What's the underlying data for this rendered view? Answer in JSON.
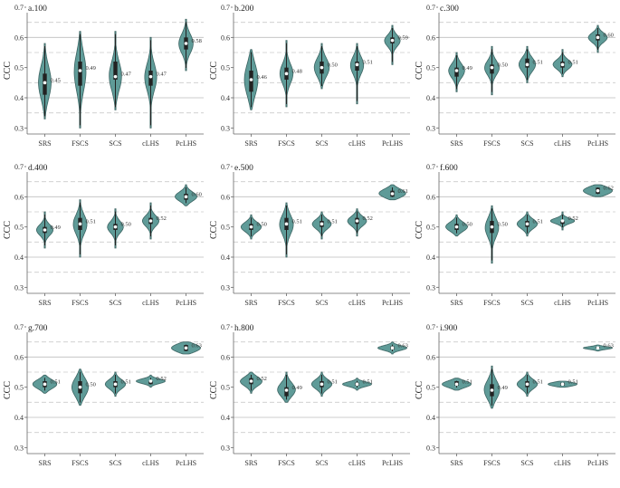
{
  "colors": {
    "violin": "#5f9b98",
    "violin_stroke": "#3c6462",
    "box": "#222222",
    "median": "#ffffff",
    "grid_solid": "#bdbdbd",
    "grid_dashed": "#cccccc"
  },
  "chart_data": [
    {
      "type": "violin",
      "panel_label": "a.100",
      "ylabel": "CCC",
      "ylim": [
        0.28,
        0.7
      ],
      "yticks": [
        0.3,
        0.4,
        0.5,
        0.6,
        0.7
      ],
      "grid": "solid at 0.4 and 0.6; dashed at 0.35, 0.45, 0.55, 0.65",
      "categories": [
        "SRS",
        "FSCS",
        "SCS",
        "cLHS",
        "PcLHS"
      ],
      "series": [
        {
          "median": 0.45,
          "q1": 0.41,
          "q3": 0.48,
          "min": 0.33,
          "max": 0.58,
          "label": "0.45"
        },
        {
          "median": 0.49,
          "q1": 0.44,
          "q3": 0.52,
          "min": 0.3,
          "max": 0.62,
          "label": "0.49"
        },
        {
          "median": 0.47,
          "q1": 0.46,
          "q3": 0.52,
          "min": 0.36,
          "max": 0.62,
          "label": "0.47"
        },
        {
          "median": 0.47,
          "q1": 0.44,
          "q3": 0.49,
          "min": 0.3,
          "max": 0.6,
          "label": "0.47"
        },
        {
          "median": 0.58,
          "q1": 0.56,
          "q3": 0.6,
          "min": 0.49,
          "max": 0.66,
          "label": "0.58"
        }
      ]
    },
    {
      "type": "violin",
      "panel_label": "b.200",
      "ylabel": "CCC",
      "ylim": [
        0.28,
        0.7
      ],
      "yticks": [
        0.3,
        0.4,
        0.5,
        0.6,
        0.7
      ],
      "categories": [
        "SRS",
        "FSCS",
        "SCS",
        "cLHS",
        "PcLHS"
      ],
      "series": [
        {
          "median": 0.46,
          "q1": 0.42,
          "q3": 0.49,
          "min": 0.36,
          "max": 0.56,
          "label": "0.46"
        },
        {
          "median": 0.48,
          "q1": 0.46,
          "q3": 0.5,
          "min": 0.37,
          "max": 0.59,
          "label": "0.48"
        },
        {
          "median": 0.5,
          "q1": 0.48,
          "q3": 0.52,
          "min": 0.43,
          "max": 0.58,
          "label": "0.50"
        },
        {
          "median": 0.51,
          "q1": 0.49,
          "q3": 0.52,
          "min": 0.38,
          "max": 0.58,
          "label": "0.51"
        },
        {
          "median": 0.59,
          "q1": 0.58,
          "q3": 0.6,
          "min": 0.51,
          "max": 0.64,
          "label": "0.59"
        }
      ]
    },
    {
      "type": "violin",
      "panel_label": "c.300",
      "ylabel": "CCC",
      "ylim": [
        0.28,
        0.7
      ],
      "yticks": [
        0.3,
        0.4,
        0.5,
        0.6,
        0.7
      ],
      "categories": [
        "SRS",
        "FSCS",
        "SCS",
        "cLHS",
        "PcLHS"
      ],
      "series": [
        {
          "median": 0.49,
          "q1": 0.47,
          "q3": 0.5,
          "min": 0.42,
          "max": 0.55,
          "label": "0.49"
        },
        {
          "median": 0.5,
          "q1": 0.48,
          "q3": 0.51,
          "min": 0.41,
          "max": 0.57,
          "label": "0.50"
        },
        {
          "median": 0.51,
          "q1": 0.5,
          "q3": 0.53,
          "min": 0.45,
          "max": 0.57,
          "label": "0.51"
        },
        {
          "median": 0.51,
          "q1": 0.5,
          "q3": 0.52,
          "min": 0.47,
          "max": 0.56,
          "label": "0.51"
        },
        {
          "median": 0.6,
          "q1": 0.59,
          "q3": 0.61,
          "min": 0.55,
          "max": 0.64,
          "label": "0.60"
        }
      ]
    },
    {
      "type": "violin",
      "panel_label": "d.400",
      "ylabel": "CCC",
      "ylim": [
        0.28,
        0.7
      ],
      "yticks": [
        0.3,
        0.4,
        0.5,
        0.6,
        0.7
      ],
      "categories": [
        "SRS",
        "FSCS",
        "SCS",
        "cLHS",
        "PcLHS"
      ],
      "series": [
        {
          "median": 0.49,
          "q1": 0.48,
          "q3": 0.5,
          "min": 0.43,
          "max": 0.55,
          "label": "0.49"
        },
        {
          "median": 0.51,
          "q1": 0.49,
          "q3": 0.53,
          "min": 0.4,
          "max": 0.59,
          "label": "0.51"
        },
        {
          "median": 0.5,
          "q1": 0.49,
          "q3": 0.51,
          "min": 0.43,
          "max": 0.56,
          "label": "0.50"
        },
        {
          "median": 0.52,
          "q1": 0.51,
          "q3": 0.53,
          "min": 0.46,
          "max": 0.58,
          "label": "0.52"
        },
        {
          "median": 0.6,
          "q1": 0.59,
          "q3": 0.61,
          "min": 0.57,
          "max": 0.64,
          "label": "0.60"
        }
      ]
    },
    {
      "type": "violin",
      "panel_label": "e.500",
      "ylabel": "CCC",
      "ylim": [
        0.28,
        0.7
      ],
      "yticks": [
        0.3,
        0.4,
        0.5,
        0.6,
        0.7
      ],
      "categories": [
        "SRS",
        "FSCS",
        "SCS",
        "cLHS",
        "PcLHS"
      ],
      "series": [
        {
          "median": 0.5,
          "q1": 0.49,
          "q3": 0.51,
          "min": 0.46,
          "max": 0.54,
          "label": "0.50"
        },
        {
          "median": 0.51,
          "q1": 0.49,
          "q3": 0.53,
          "min": 0.4,
          "max": 0.58,
          "label": "0.51"
        },
        {
          "median": 0.51,
          "q1": 0.5,
          "q3": 0.52,
          "min": 0.46,
          "max": 0.55,
          "label": "0.51"
        },
        {
          "median": 0.52,
          "q1": 0.51,
          "q3": 0.53,
          "min": 0.47,
          "max": 0.56,
          "label": "0.52"
        },
        {
          "median": 0.61,
          "q1": 0.6,
          "q3": 0.62,
          "min": 0.59,
          "max": 0.64,
          "label": "0.61"
        }
      ]
    },
    {
      "type": "violin",
      "panel_label": "f.600",
      "ylabel": "CCC",
      "ylim": [
        0.28,
        0.7
      ],
      "yticks": [
        0.3,
        0.4,
        0.5,
        0.6,
        0.7
      ],
      "categories": [
        "SRS",
        "FSCS",
        "SCS",
        "cLHS",
        "PcLHS"
      ],
      "series": [
        {
          "median": 0.5,
          "q1": 0.49,
          "q3": 0.51,
          "min": 0.47,
          "max": 0.54,
          "label": "0.50"
        },
        {
          "median": 0.5,
          "q1": 0.48,
          "q3": 0.52,
          "min": 0.38,
          "max": 0.57,
          "label": "0.50"
        },
        {
          "median": 0.51,
          "q1": 0.5,
          "q3": 0.52,
          "min": 0.47,
          "max": 0.55,
          "label": "0.51"
        },
        {
          "median": 0.52,
          "q1": 0.51,
          "q3": 0.52,
          "min": 0.49,
          "max": 0.55,
          "label": "0.52"
        },
        {
          "median": 0.62,
          "q1": 0.61,
          "q3": 0.63,
          "min": 0.6,
          "max": 0.64,
          "label": "0.62"
        }
      ]
    },
    {
      "type": "violin",
      "panel_label": "g.700",
      "ylabel": "CCC",
      "ylim": [
        0.28,
        0.7
      ],
      "yticks": [
        0.3,
        0.4,
        0.5,
        0.6,
        0.7
      ],
      "categories": [
        "SRS",
        "FSCS",
        "SCS",
        "cLHS",
        "PcLHS"
      ],
      "series": [
        {
          "median": 0.51,
          "q1": 0.5,
          "q3": 0.52,
          "min": 0.48,
          "max": 0.54,
          "label": "0.51"
        },
        {
          "median": 0.5,
          "q1": 0.48,
          "q3": 0.52,
          "min": 0.44,
          "max": 0.56,
          "label": "0.50"
        },
        {
          "median": 0.51,
          "q1": 0.5,
          "q3": 0.52,
          "min": 0.47,
          "max": 0.55,
          "label": "0.51"
        },
        {
          "median": 0.52,
          "q1": 0.51,
          "q3": 0.52,
          "min": 0.5,
          "max": 0.54,
          "label": "0.52"
        },
        {
          "median": 0.63,
          "q1": 0.62,
          "q3": 0.64,
          "min": 0.61,
          "max": 0.65,
          "label": "0.63"
        }
      ]
    },
    {
      "type": "violin",
      "panel_label": "h.800",
      "ylabel": "CCC",
      "ylim": [
        0.28,
        0.7
      ],
      "yticks": [
        0.3,
        0.4,
        0.5,
        0.6,
        0.7
      ],
      "categories": [
        "SRS",
        "FSCS",
        "SCS",
        "cLHS",
        "PcLHS"
      ],
      "series": [
        {
          "median": 0.52,
          "q1": 0.51,
          "q3": 0.53,
          "min": 0.48,
          "max": 0.55,
          "label": "0.52"
        },
        {
          "median": 0.49,
          "q1": 0.47,
          "q3": 0.5,
          "min": 0.45,
          "max": 0.55,
          "label": "0.49"
        },
        {
          "median": 0.51,
          "q1": 0.5,
          "q3": 0.52,
          "min": 0.47,
          "max": 0.55,
          "label": "0.51"
        },
        {
          "median": 0.51,
          "q1": 0.505,
          "q3": 0.515,
          "min": 0.49,
          "max": 0.53,
          "label": "0.51"
        },
        {
          "median": 0.63,
          "q1": 0.625,
          "q3": 0.635,
          "min": 0.61,
          "max": 0.65,
          "label": "0.63"
        }
      ]
    },
    {
      "type": "violin",
      "panel_label": "i.900",
      "ylabel": "CCC",
      "ylim": [
        0.28,
        0.7
      ],
      "yticks": [
        0.3,
        0.4,
        0.5,
        0.6,
        0.7
      ],
      "categories": [
        "SRS",
        "FSCS",
        "SCS",
        "cLHS",
        "PcLHS"
      ],
      "series": [
        {
          "median": 0.51,
          "q1": 0.505,
          "q3": 0.52,
          "min": 0.49,
          "max": 0.53,
          "label": "0.51"
        },
        {
          "median": 0.49,
          "q1": 0.47,
          "q3": 0.51,
          "min": 0.43,
          "max": 0.57,
          "label": "0.49"
        },
        {
          "median": 0.51,
          "q1": 0.5,
          "q3": 0.52,
          "min": 0.47,
          "max": 0.55,
          "label": "0.51"
        },
        {
          "median": 0.51,
          "q1": 0.505,
          "q3": 0.515,
          "min": 0.5,
          "max": 0.52,
          "label": "0.51"
        },
        {
          "median": 0.63,
          "q1": 0.628,
          "q3": 0.634,
          "min": 0.62,
          "max": 0.64,
          "label": "0.63"
        }
      ]
    }
  ]
}
